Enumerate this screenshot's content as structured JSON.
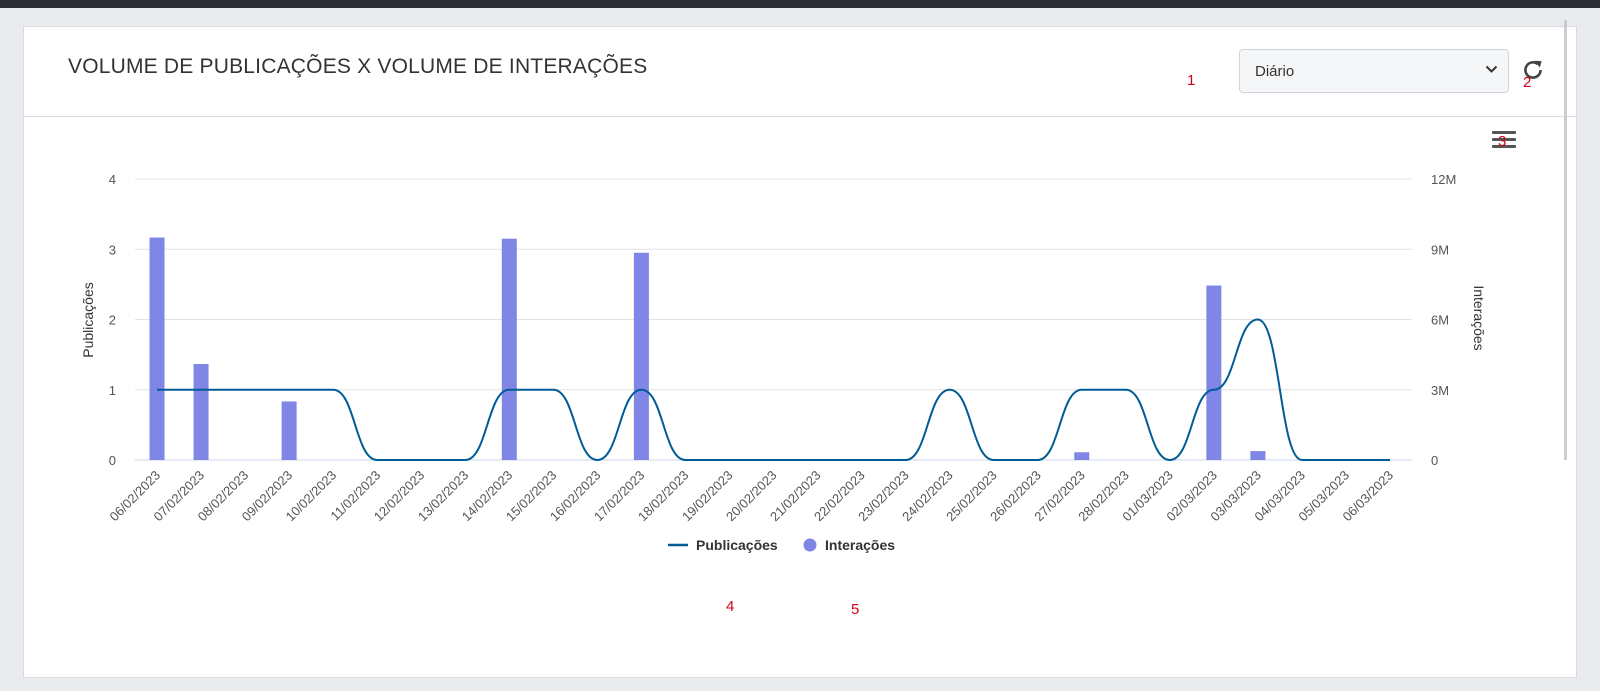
{
  "header": {
    "title": "VOLUME DE PUBLICAÇÕES X VOLUME DE INTERAÇÕES",
    "period_select": {
      "value": "Diário"
    }
  },
  "markers": [
    "1",
    "2",
    "3",
    "4",
    "5"
  ],
  "icons": {
    "dropdown": "chevron-down-icon",
    "refresh": "refresh-icon",
    "menu": "hamburger-menu-icon"
  },
  "colors": {
    "publicacoes": "#005b96",
    "interacoes": "#8086e6",
    "grid": "#e3e3e3"
  },
  "chart_data": {
    "type": "bar+line",
    "categories": [
      "06/02/2023",
      "07/02/2023",
      "08/02/2023",
      "09/02/2023",
      "10/02/2023",
      "11/02/2023",
      "12/02/2023",
      "13/02/2023",
      "14/02/2023",
      "15/02/2023",
      "16/02/2023",
      "17/02/2023",
      "18/02/2023",
      "19/02/2023",
      "20/02/2023",
      "21/02/2023",
      "22/02/2023",
      "23/02/2023",
      "24/02/2023",
      "25/02/2023",
      "26/02/2023",
      "27/02/2023",
      "28/02/2023",
      "01/03/2023",
      "02/03/2023",
      "03/03/2023",
      "04/03/2023",
      "05/03/2023",
      "06/03/2023"
    ],
    "series": [
      {
        "name": "Publicações",
        "type": "spline",
        "axis": "left",
        "values": [
          1,
          1,
          1,
          1,
          1,
          0,
          0,
          0,
          1,
          1,
          0,
          1,
          0,
          0,
          0,
          0,
          0,
          0,
          1,
          0,
          0,
          1,
          1,
          0,
          1,
          2,
          0,
          0,
          0
        ]
      },
      {
        "name": "Interações",
        "type": "column",
        "axis": "right",
        "values": [
          9500000,
          4100000,
          0,
          2500000,
          0,
          0,
          0,
          0,
          9450000,
          0,
          0,
          8850000,
          0,
          0,
          0,
          0,
          0,
          0,
          0,
          0,
          0,
          330000,
          0,
          0,
          7450000,
          380000,
          0,
          0,
          0
        ]
      }
    ],
    "y_left": {
      "label": "Publicações",
      "ticks": [
        "0",
        "1",
        "2",
        "3",
        "4"
      ],
      "min": 0,
      "max": 4
    },
    "y_right": {
      "label": "Interações",
      "ticks": [
        "0",
        "3M",
        "6M",
        "9M",
        "12M"
      ],
      "min": 0,
      "max": 12000000
    },
    "grid": true,
    "legend_position": "bottom-center"
  }
}
